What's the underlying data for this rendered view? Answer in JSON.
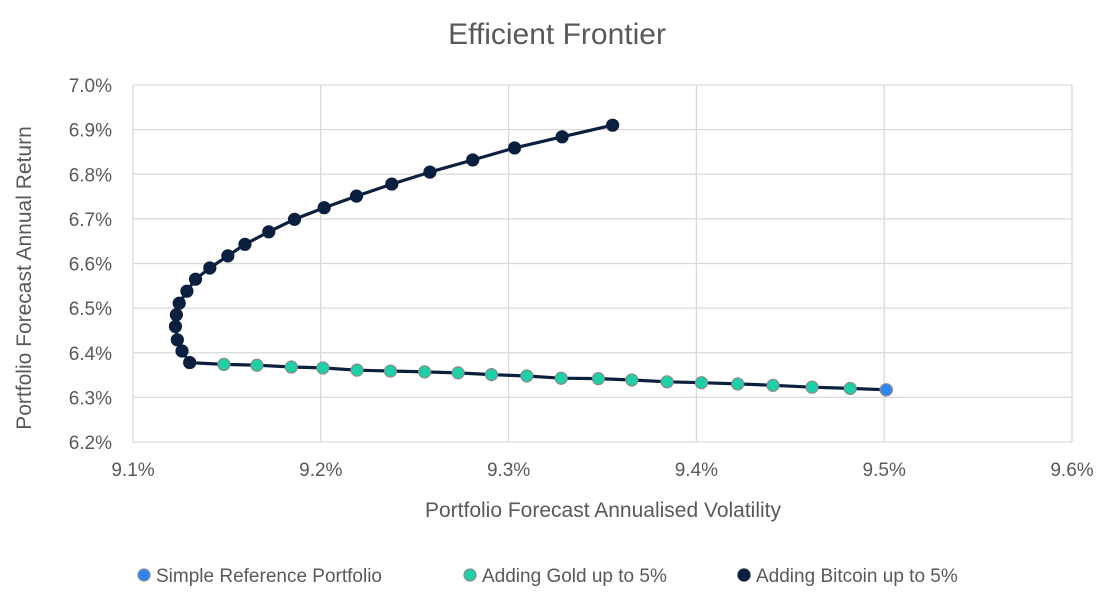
{
  "chart_data": {
    "type": "scatter",
    "title": "Efficient Frontier",
    "xlabel": "Portfolio Forecast Annualised Volatility",
    "ylabel": "Portfolio Forecast Annual Return",
    "xlim": [
      9.1,
      9.6
    ],
    "ylim": [
      6.2,
      7.0
    ],
    "xticks": [
      9.1,
      9.2,
      9.3,
      9.4,
      9.5,
      9.6
    ],
    "yticks": [
      6.2,
      6.3,
      6.4,
      6.5,
      6.6,
      6.7,
      6.8,
      6.9,
      7.0
    ],
    "xtick_labels": [
      "9.1%",
      "9.2%",
      "9.3%",
      "9.4%",
      "9.5%",
      "9.6%"
    ],
    "ytick_labels": [
      "6.2%",
      "6.3%",
      "6.4%",
      "6.5%",
      "6.6%",
      "6.7%",
      "6.8%",
      "6.9%",
      "7.0%"
    ],
    "grid": true,
    "legend_position": "bottom",
    "series": [
      {
        "name": "Simple Reference Portfolio",
        "color": "#2E86F5",
        "line": false,
        "points": [
          [
            9.5011,
            6.3169
          ]
        ]
      },
      {
        "name": "Adding Gold up to 5%",
        "color": "#1FCFA8",
        "line": true,
        "points": [
          [
            9.1302,
            6.378
          ],
          [
            9.1484,
            6.3739
          ],
          [
            9.166,
            6.372
          ],
          [
            9.1843,
            6.368
          ],
          [
            9.2011,
            6.366
          ],
          [
            9.2193,
            6.361
          ],
          [
            9.2371,
            6.359
          ],
          [
            9.2553,
            6.3571
          ],
          [
            9.2731,
            6.3549
          ],
          [
            9.2909,
            6.351
          ],
          [
            9.3097,
            6.348
          ],
          [
            9.328,
            6.3429
          ],
          [
            9.3478,
            6.342
          ],
          [
            9.3656,
            6.339
          ],
          [
            9.3844,
            6.3349
          ],
          [
            9.4027,
            6.3329
          ],
          [
            9.422,
            6.3301
          ],
          [
            9.4408,
            6.327
          ],
          [
            9.4616,
            6.3229
          ],
          [
            9.4819,
            6.32
          ],
          [
            9.5011,
            6.3169
          ]
        ]
      },
      {
        "name": "Adding Bitcoin up to 5%",
        "color": "#0B1F3F",
        "line": true,
        "points": [
          [
            9.1302,
            6.378
          ],
          [
            9.1261,
            6.4039
          ],
          [
            9.1236,
            6.429
          ],
          [
            9.1226,
            6.459
          ],
          [
            9.1231,
            6.4851
          ],
          [
            9.1246,
            6.511
          ],
          [
            9.1287,
            6.538
          ],
          [
            9.1333,
            6.5649
          ],
          [
            9.1409,
            6.59
          ],
          [
            9.1505,
            6.6171
          ],
          [
            9.1596,
            6.643
          ],
          [
            9.1723,
            6.671
          ],
          [
            9.186,
            6.699
          ],
          [
            9.2018,
            6.7251
          ],
          [
            9.219,
            6.751
          ],
          [
            9.2378,
            6.778
          ],
          [
            9.2581,
            6.8049
          ],
          [
            9.2809,
            6.832
          ],
          [
            9.3032,
            6.859
          ],
          [
            9.3285,
            6.8839
          ],
          [
            9.3554,
            6.91
          ]
        ]
      }
    ]
  }
}
